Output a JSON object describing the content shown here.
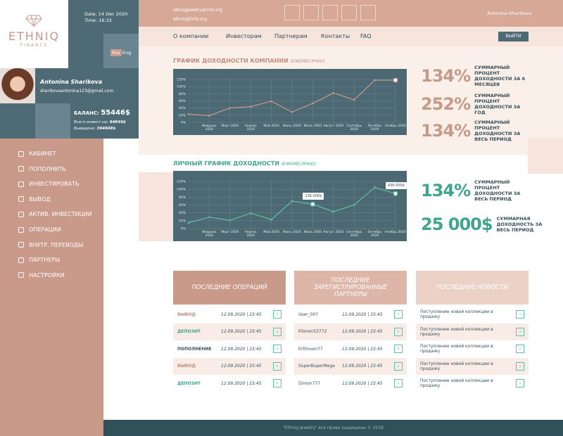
{
  "sidebar": {
    "logo": "ETHNIQ",
    "logo_sub": "FINANCE",
    "date": "Date: 14 Dec 2020",
    "time": "Time: 16:33",
    "languages": [
      "Rus",
      "Eng"
    ],
    "user_name": "Antonina Sharikova",
    "user_email": "sharikovaantonina123@gmail.com",
    "balance_label": "БАЛАНС:",
    "balance": "55446$",
    "invested_label": "Всего инвест-но:",
    "invested": "94849$",
    "withdrawn_label": "Выведено:",
    "withdrawn": "394848$",
    "menu": [
      "КАБИНЕТ",
      "ПОПОЛНИТЬ",
      "ИНВЕСТИРОВАТЬ",
      "ВЫВОД",
      "АКТИВ. ИНВЕСТИЦИИ",
      "ОПЕРАЦИИ",
      "ВНУТР. ПЕРЕВОДЫ",
      "ПАРТНЕРЫ",
      "НАСТРОЙКИ"
    ]
  },
  "header": {
    "emails": [
      "ethniqjewelry@info.org",
      "ethniq@info.org"
    ],
    "user": "Antonina Sharikova",
    "nav": [
      "О компании",
      "Инвесторам",
      "Партнерам",
      "Контакты",
      "FAQ"
    ],
    "logout": "ВЫЙТИ"
  },
  "charts": [
    {
      "type": "line",
      "title": "ГРАФИК ДОХОДНОСТИ КОМПАНИИ",
      "subtitle": "(ЕЖЕМЕСЯЧНО)",
      "color": "#c9998a",
      "categories": [
        null,
        "Февраль 2020",
        "Март 2020",
        "Апрель 2020",
        "Май 2020",
        "Июнь 2020",
        "Июль 2020",
        "Август 2020",
        "Сентябрь 2020",
        "Октябрь 2020",
        "Ноябрь 2020"
      ],
      "values": [
        23,
        19,
        40,
        44,
        59,
        29,
        53,
        82,
        63,
        118,
        118
      ],
      "ylim": [
        0,
        120
      ],
      "yticks": [
        {
          "value": 0,
          "label": "0%"
        },
        {
          "value": 20,
          "label": "20%"
        },
        {
          "value": 40,
          "label": "40%"
        },
        {
          "value": 60,
          "label": "60%"
        },
        {
          "value": 80,
          "label": "80%"
        },
        {
          "value": 100,
          "label": "100%"
        },
        {
          "value": 120,
          "label": "120%"
        }
      ],
      "grid": true,
      "annotations": []
    },
    {
      "type": "line",
      "title": "ЛИЧНЫЙ ГРАФИК ДОХОДНОСТИ",
      "subtitle": "(ЕЖЕМЕСЯЧНО)",
      "color": "#5fc1a4",
      "categories": [
        null,
        "Февраль 2020",
        "Март 2020",
        "Апрель 2020",
        "Май 2020",
        "Июнь 2020",
        "Июль 2020",
        "Август 2020",
        "Сентябрь 2020",
        "Октябрь 2020",
        "Ноябрь 2020"
      ],
      "values": [
        15,
        29,
        21,
        39,
        23,
        70,
        62,
        43,
        60,
        105,
        89
      ],
      "ylim": [
        0,
        120
      ],
      "yticks": [
        {
          "value": 0,
          "label": "0%"
        },
        {
          "value": 20,
          "label": "20%"
        },
        {
          "value": 40,
          "label": "40%"
        },
        {
          "value": 60,
          "label": "60%"
        },
        {
          "value": 80,
          "label": "80%"
        },
        {
          "value": 100,
          "label": "100%"
        },
        {
          "value": 120,
          "label": "120%"
        }
      ],
      "grid": true,
      "annotations": [
        {
          "x": "Июль 2020",
          "text": "236.000$"
        },
        {
          "x": "Ноябрь 2020",
          "text": "436.000$"
        }
      ]
    }
  ],
  "company_stats": [
    {
      "value": "134%",
      "text": "СУММАРНЫЙ ПРОЦЕНТ ДОХОДНОСТИ ЗА 6 МЕСЯЦЕВ"
    },
    {
      "value": "252%",
      "text": "СУММАРНЫЙ ПРОЦЕНТ ДОХОДНОСТИ ЗА ГОД"
    },
    {
      "value": "134%",
      "text": "СУММАРНЫЙ ПРОЦЕНТ ДОХОДНОСТИ ЗА ВЕСЬ ПЕРИОД"
    }
  ],
  "personal_stats": [
    {
      "value": "134%",
      "text": "СУММАРНЫЙ ПРОЦЕНТ ДОХОДНОСТИ ЗА ВЕСЬ ПЕРИОД"
    },
    {
      "value": "25 000$",
      "text": "СУММАРНАЯ ДОХОДНОСТЬ ЗА ВЕСЬ ПЕРИОД"
    }
  ],
  "tables": [
    {
      "title": "ПОСЛЕДНИЕ ОПЕРАЦИЙ",
      "rows": [
        [
          "ВЫВОД",
          "12.09.2020 | 23:45"
        ],
        [
          "ДЕПОЗИТ",
          "12.09.2020 | 23:45"
        ],
        [
          "ПОПОЛНЕНИЕ",
          "12.09.2020 | 23:45"
        ],
        [
          "ВЫВОД",
          "12.09.2020 | 23:45"
        ],
        [
          "ДЕПОЗИТ",
          "12.09.2020 | 23:45"
        ]
      ]
    },
    {
      "title": "ПОСЛЕДНИЕ ЗАРЕГИСТРИРОВАННЫЕ ПАРТНЕРЫ",
      "rows": [
        [
          "User_007",
          "12.09.2020 | 23:45"
        ],
        [
          "Filimon53772",
          "12.09.2020 | 23:45"
        ],
        [
          "Erthoven77",
          "12.09.2020 | 23:45"
        ],
        [
          "SuperBuperMega",
          "12.09.2020 | 23:45"
        ],
        [
          "Dimon777",
          "12.09.2020 | 23:45"
        ]
      ]
    },
    {
      "title": "ПОСЛЕДНИЕ НОВОСТИ",
      "rows": [
        [
          "Поступление новой коллекции в продажу"
        ],
        [
          "Поступление новой коллекции в продажу"
        ],
        [
          "Поступление новой коллекции в продажу"
        ],
        [
          "Поступление новой коллекции в продажу"
        ],
        [
          "Поступление новой коллекции в продажу"
        ]
      ]
    }
  ],
  "footer": "\"Ethniq Jewelry\" все права защищены © 2018"
}
